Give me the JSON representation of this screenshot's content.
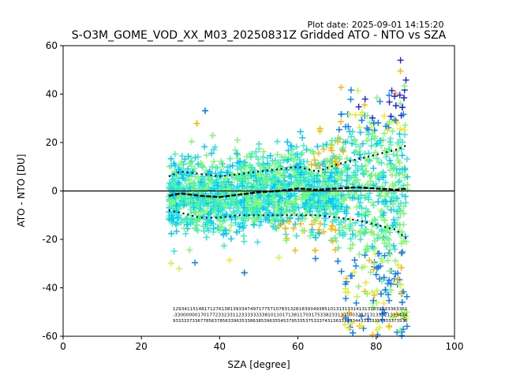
{
  "plot_date": "Plot date: 2025-09-01 14:15:20",
  "colors": {
    "zero_line": "#000000",
    "median": "#000000",
    "percentile": "#000000",
    "colormap": [
      "#1c1cff",
      "#0a7dff",
      "#00c8ff",
      "#2ee6d6",
      "#4cf0b0",
      "#7cfc6a",
      "#c8f53a",
      "#f5e61e",
      "#ffb400"
    ]
  },
  "chart_data": {
    "type": "scatter",
    "title": "S-O3M_GOME_VOD_XX_M03_20250831Z Gridded ATO - NTO vs SZA",
    "xlabel": "SZA [degree]",
    "ylabel": "ATO - NTO [DU]",
    "xlim": [
      0,
      100
    ],
    "ylim": [
      -60,
      60
    ],
    "xticks": [
      0,
      20,
      40,
      60,
      80,
      100
    ],
    "yticks": [
      -60,
      -40,
      -20,
      0,
      20,
      40,
      60
    ],
    "marker": "+",
    "sza_range": [
      27,
      88
    ],
    "zero_line": 0,
    "median": {
      "x": [
        27,
        30,
        35,
        40,
        45,
        50,
        55,
        60,
        65,
        70,
        75,
        80,
        85,
        88
      ],
      "y": [
        -2,
        -1,
        -2,
        -2.5,
        -1.5,
        -0.5,
        0,
        1,
        0.5,
        1,
        1.5,
        1,
        0.5,
        1
      ]
    },
    "upper_percentile": {
      "x": [
        27,
        30,
        35,
        40,
        45,
        50,
        55,
        60,
        65,
        70,
        75,
        80,
        85,
        88
      ],
      "y": [
        6,
        8,
        7,
        6,
        7,
        8,
        9,
        10,
        8,
        11,
        13,
        15,
        17,
        19
      ]
    },
    "lower_percentile": {
      "x": [
        27,
        30,
        35,
        40,
        45,
        50,
        55,
        60,
        65,
        70,
        75,
        80,
        85,
        88
      ],
      "y": [
        -8,
        -9,
        -11,
        -11,
        -10,
        -10,
        -10,
        -10,
        -10,
        -11,
        -12,
        -14,
        -16,
        -20
      ]
    },
    "stats_rows": [
      "1293411514817127613813933474971775710783132818393493851013131331413131633333363361",
      "-33000000170177233233112333333338101101713811703175338233133100331313133321333434",
      "9333337336778563785633963533863853963554537953353753337431363312334433333317333373535"
    ]
  }
}
